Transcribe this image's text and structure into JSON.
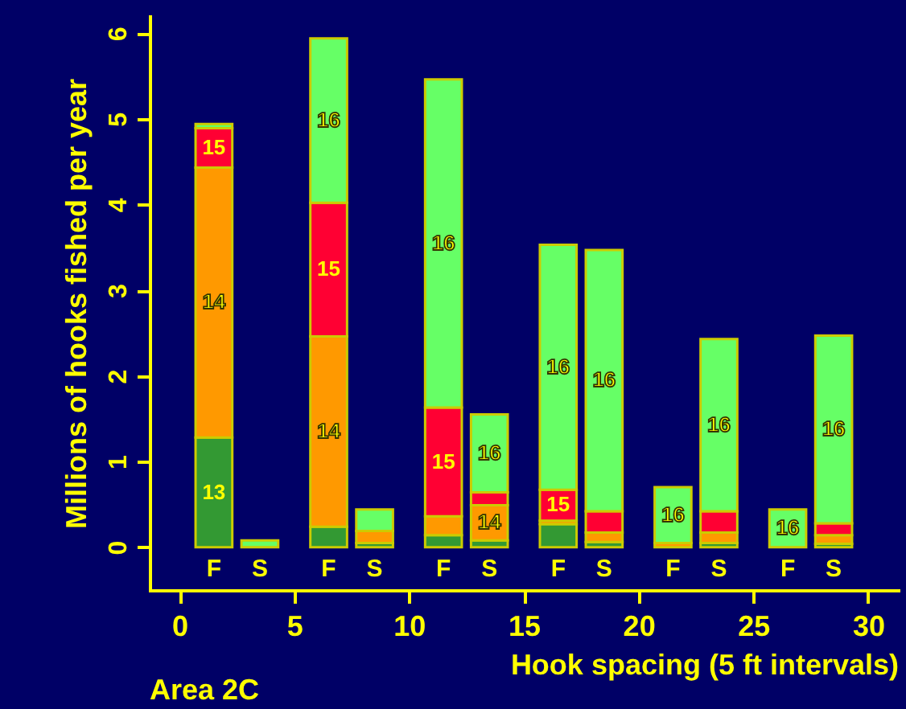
{
  "chart_data": {
    "type": "bar",
    "stacked": true,
    "xlabel": "Hook spacing (5 ft intervals)",
    "ylabel": "Millions of hooks fished per year",
    "x": [
      1.5,
      3.5,
      6.5,
      8.5,
      11.5,
      13.5,
      16.5,
      18.5,
      21.5,
      23.5,
      26.5,
      28.5
    ],
    "series": [
      {
        "name": "13",
        "color": "#339933",
        "values": [
          1.28,
          null,
          0.24,
          0.05,
          0.14,
          0.08,
          0.27,
          0.06,
          null,
          0.05,
          null,
          0.04
        ]
      },
      {
        "name": "14",
        "color": "#ff9900",
        "values": [
          3.15,
          null,
          2.22,
          0.14,
          0.22,
          0.41,
          0.04,
          0.11,
          0.05,
          0.12,
          null,
          0.1
        ]
      },
      {
        "name": "15",
        "color": "#ff0033",
        "values": [
          0.46,
          null,
          1.56,
          null,
          1.27,
          0.15,
          0.36,
          0.25,
          null,
          0.25,
          null,
          0.14
        ]
      },
      {
        "name": "16",
        "color": "#66ff66",
        "values": [
          0.05,
          0.08,
          1.92,
          0.25,
          3.83,
          0.91,
          2.86,
          3.05,
          0.65,
          2.01,
          0.44,
          2.19
        ]
      }
    ],
    "xlim": [
      -1.3,
      31.3
    ],
    "xticks": [
      0,
      5,
      10,
      15,
      20,
      25,
      30
    ],
    "ylim": [
      -0.5,
      6.2
    ],
    "yticks": [
      0,
      1,
      2,
      3,
      4,
      5,
      6
    ],
    "grid": false,
    "annotations": [
      "F",
      "S",
      "F",
      "S",
      "F",
      "S",
      "F",
      "S",
      "F",
      "S",
      "F",
      "S",
      "Area 2C"
    ]
  }
}
